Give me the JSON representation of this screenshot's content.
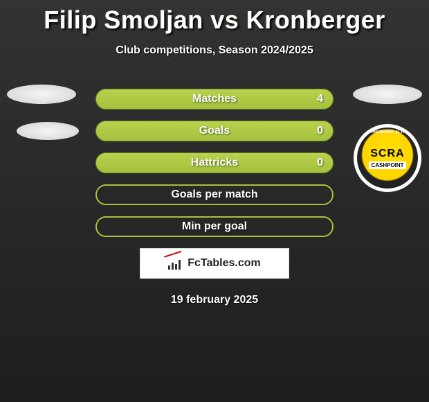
{
  "title": "Filip Smoljan vs Kronberger",
  "subtitle": "Club competitions, Season 2024/2025",
  "bars": [
    {
      "label": "Matches",
      "left": "",
      "right": "4",
      "style": "full"
    },
    {
      "label": "Goals",
      "left": "",
      "right": "0",
      "style": "full"
    },
    {
      "label": "Hattricks",
      "left": "",
      "right": "0",
      "style": "full"
    },
    {
      "label": "Goals per match",
      "left": "",
      "right": "",
      "style": "outline"
    },
    {
      "label": "Min per goal",
      "left": "",
      "right": "",
      "style": "outline"
    }
  ],
  "colors": {
    "bar_fill_top": "#b9d24e",
    "bar_fill_bottom": "#a5c13d",
    "bar_border": "#6b8a1f",
    "text": "#ffffff",
    "bg_top": "#333333",
    "bg_bottom": "#1e1e1e"
  },
  "badge": {
    "main": "SCRA",
    "sub": "CASHPOINT",
    "ring": "RHEINDORF ALTA"
  },
  "footer_brand": "FcTables.com",
  "date": "19 february 2025"
}
